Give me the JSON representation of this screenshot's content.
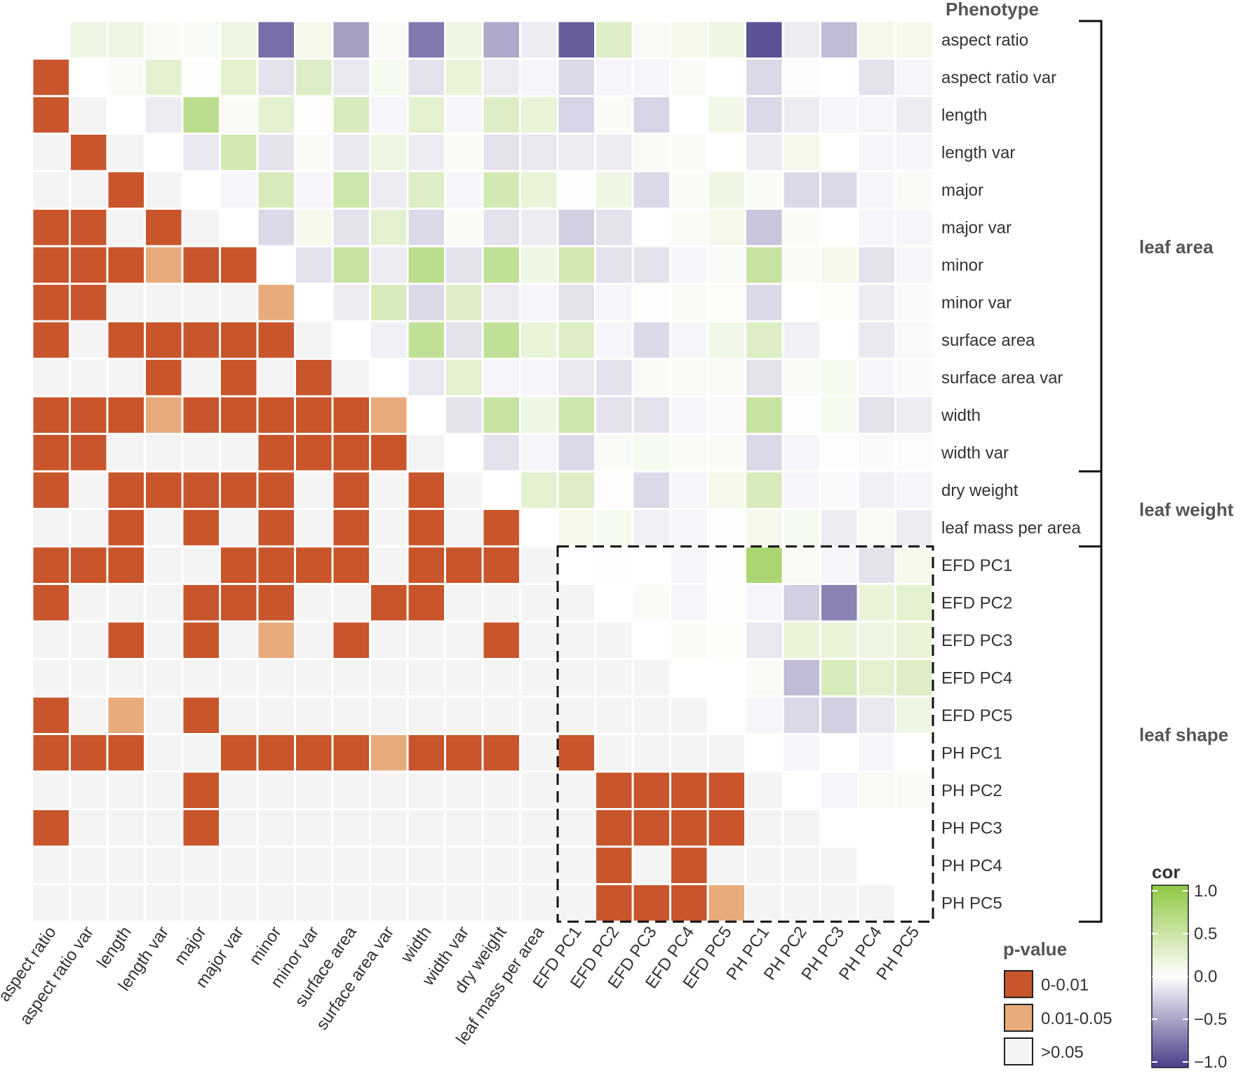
{
  "chart_data": {
    "type": "heatmap",
    "title": "",
    "row_header": "Phenotype",
    "variables": [
      "aspect ratio",
      "aspect ratio var",
      "length",
      "length var",
      "major",
      "major var",
      "minor",
      "minor var",
      "surface area",
      "surface area var",
      "width",
      "width var",
      "dry weight",
      "leaf mass per area",
      "EFD PC1",
      "EFD PC2",
      "EFD PC3",
      "EFD PC4",
      "EFD PC5",
      "PH PC1",
      "PH PC2",
      "PH PC3",
      "PH PC4",
      "PH PC5"
    ],
    "upper_triangle": "correlation coefficient (cor), range -1 to 1",
    "lower_triangle": "p-value category",
    "cor_matrix": [
      [
        0,
        0.15,
        0.15,
        0.05,
        0.05,
        0.15,
        -0.75,
        0.1,
        -0.5,
        0.05,
        -0.7,
        0.15,
        -0.45,
        -0.1,
        -0.85,
        0.3,
        0.05,
        0.1,
        0.15,
        -0.9,
        -0.1,
        -0.35,
        0.1,
        0.1
      ],
      [
        0.15,
        0,
        0.05,
        0.25,
        0.02,
        0.25,
        -0.15,
        0.3,
        -0.12,
        0.08,
        -0.15,
        0.2,
        -0.1,
        -0.05,
        -0.2,
        -0.05,
        -0.05,
        0.05,
        0,
        -0.2,
        -0.02,
        0,
        -0.15,
        -0.05
      ],
      [
        0.15,
        0.05,
        0,
        -0.1,
        0.6,
        0.05,
        0.25,
        0.02,
        0.35,
        -0.05,
        0.25,
        -0.05,
        0.3,
        0.2,
        -0.22,
        0.05,
        -0.22,
        0,
        0.12,
        -0.2,
        -0.1,
        -0.05,
        -0.05,
        -0.1
      ],
      [
        0.05,
        0.25,
        -0.1,
        0,
        -0.12,
        0.4,
        -0.15,
        0.05,
        -0.12,
        0.15,
        -0.1,
        0.05,
        -0.15,
        -0.12,
        -0.1,
        -0.1,
        0.05,
        0.05,
        0,
        -0.1,
        0.1,
        0,
        -0.05,
        -0.05
      ],
      [
        0.05,
        0.02,
        0.6,
        -0.12,
        0,
        -0.05,
        0.35,
        -0.05,
        0.45,
        -0.1,
        0.3,
        -0.05,
        0.4,
        0.2,
        0.02,
        0.15,
        -0.2,
        0.05,
        0.15,
        0.05,
        -0.2,
        -0.2,
        -0.05,
        0.05
      ],
      [
        0.15,
        0.25,
        0.05,
        0.4,
        -0.05,
        0,
        -0.2,
        0.1,
        -0.15,
        0.25,
        -0.2,
        0.05,
        -0.15,
        -0.1,
        -0.25,
        -0.15,
        0,
        0.05,
        0.1,
        -0.3,
        0.05,
        0,
        -0.05,
        -0.05
      ],
      [
        -0.75,
        -0.15,
        0.25,
        -0.15,
        0.35,
        -0.2,
        0,
        -0.15,
        0.5,
        -0.1,
        0.6,
        -0.15,
        0.55,
        0.15,
        0.4,
        -0.15,
        -0.15,
        -0.05,
        0.05,
        0.5,
        0.05,
        0.1,
        -0.15,
        -0.05
      ],
      [
        0.1,
        0.3,
        0.02,
        0.05,
        -0.05,
        0.1,
        -0.15,
        0,
        -0.1,
        0.35,
        -0.2,
        0.3,
        -0.1,
        -0.05,
        -0.15,
        -0.05,
        0.02,
        0.05,
        0.03,
        -0.2,
        0,
        0.03,
        -0.1,
        -0.03
      ],
      [
        -0.5,
        -0.12,
        0.35,
        -0.12,
        0.45,
        -0.15,
        0.5,
        -0.1,
        0,
        -0.08,
        0.55,
        -0.15,
        0.55,
        0.2,
        0.3,
        -0.05,
        -0.2,
        -0.05,
        0.12,
        0.3,
        -0.08,
        0,
        -0.12,
        -0.03
      ],
      [
        0.05,
        0.08,
        -0.05,
        0.15,
        -0.1,
        0.25,
        -0.1,
        0.35,
        -0.08,
        0,
        -0.12,
        0.25,
        -0.05,
        -0.05,
        -0.12,
        -0.15,
        0.05,
        0.05,
        0.05,
        -0.15,
        0.05,
        0.08,
        -0.05,
        -0.03
      ],
      [
        -0.7,
        -0.15,
        0.25,
        -0.1,
        0.3,
        -0.2,
        0.6,
        -0.2,
        0.55,
        -0.12,
        0,
        -0.15,
        0.5,
        0.15,
        0.45,
        -0.15,
        -0.15,
        -0.05,
        -0.03,
        0.5,
        0.02,
        0.08,
        -0.15,
        -0.1
      ],
      [
        0.15,
        0.2,
        -0.05,
        0.05,
        -0.05,
        0.05,
        -0.15,
        0.3,
        -0.15,
        0.25,
        -0.15,
        0,
        -0.15,
        -0.05,
        -0.2,
        0.05,
        0.08,
        0.05,
        0.05,
        -0.2,
        -0.05,
        0.02,
        -0.03,
        -0.02
      ],
      [
        -0.45,
        -0.1,
        0.3,
        -0.15,
        0.4,
        -0.15,
        0.55,
        -0.1,
        0.55,
        -0.05,
        0.5,
        -0.15,
        0,
        0.25,
        0.3,
        0.02,
        -0.2,
        -0.05,
        0.1,
        0.35,
        -0.05,
        -0.03,
        -0.08,
        -0.05
      ],
      [
        -0.1,
        -0.05,
        0.2,
        -0.12,
        0.2,
        -0.1,
        0.15,
        -0.05,
        0.2,
        -0.05,
        0.15,
        -0.05,
        0.25,
        0,
        0.1,
        0.08,
        -0.08,
        -0.05,
        0.02,
        0.1,
        0.08,
        -0.1,
        0.05,
        -0.1
      ],
      [
        -0.85,
        -0.2,
        -0.22,
        -0.1,
        0.02,
        -0.25,
        0.4,
        -0.15,
        0.3,
        -0.12,
        0.45,
        -0.2,
        0.3,
        0.1,
        0,
        0.02,
        0,
        -0.05,
        0.02,
        0.75,
        0.05,
        -0.05,
        -0.15,
        0.1
      ],
      [
        0.3,
        -0.05,
        0.05,
        -0.1,
        0.15,
        -0.15,
        -0.15,
        -0.05,
        -0.05,
        -0.15,
        -0.15,
        0.05,
        0.02,
        0.08,
        0.02,
        0,
        0.05,
        -0.05,
        0.02,
        -0.05,
        -0.25,
        -0.65,
        0.2,
        0.25
      ],
      [
        0.05,
        -0.05,
        -0.22,
        0.05,
        -0.2,
        0,
        -0.15,
        0.02,
        -0.2,
        0.05,
        -0.15,
        0.08,
        -0.2,
        -0.08,
        0,
        0.05,
        0,
        0.05,
        0.03,
        -0.12,
        0.2,
        0.2,
        0.15,
        0.2
      ],
      [
        0.1,
        0.05,
        0,
        0.05,
        0.05,
        0.05,
        -0.05,
        0.05,
        -0.05,
        0.05,
        -0.05,
        0.05,
        -0.05,
        -0.05,
        -0.05,
        -0.05,
        0.05,
        0,
        0,
        0.05,
        -0.35,
        0.35,
        0.25,
        0.3
      ],
      [
        0.15,
        0,
        0.12,
        0,
        0.15,
        0.1,
        0.05,
        0.03,
        0.12,
        0.05,
        -0.03,
        0.05,
        0.1,
        0.02,
        0.02,
        0.02,
        0.03,
        0,
        0,
        -0.05,
        -0.2,
        -0.25,
        -0.12,
        0.15
      ],
      [
        -0.9,
        -0.2,
        -0.2,
        -0.1,
        0.05,
        -0.3,
        0.5,
        -0.2,
        0.3,
        -0.15,
        0.5,
        -0.2,
        0.35,
        0.1,
        0.75,
        -0.05,
        -0.12,
        0.05,
        -0.05,
        0,
        -0.05,
        0,
        -0.05,
        0
      ],
      [
        -0.1,
        -0.02,
        -0.1,
        0.1,
        -0.2,
        0.05,
        0.05,
        0,
        -0.08,
        0.05,
        0.02,
        -0.05,
        -0.05,
        0.08,
        0.05,
        -0.25,
        0.2,
        -0.35,
        -0.2,
        -0.05,
        0,
        -0.05,
        0.05,
        0.05
      ],
      [
        -0.35,
        0,
        -0.05,
        0,
        -0.2,
        0,
        0.1,
        0.03,
        0,
        0.08,
        0.08,
        0.02,
        -0.03,
        -0.1,
        -0.05,
        -0.65,
        0.2,
        0.35,
        -0.25,
        0,
        -0.05,
        0,
        0,
        0
      ],
      [
        0.1,
        -0.15,
        -0.05,
        -0.05,
        -0.05,
        -0.05,
        -0.15,
        -0.1,
        -0.12,
        -0.05,
        -0.15,
        -0.03,
        -0.08,
        0.05,
        -0.15,
        0.2,
        0.15,
        0.25,
        -0.12,
        -0.05,
        0.05,
        0,
        0,
        0
      ],
      [
        0.1,
        -0.05,
        -0.1,
        -0.05,
        0.05,
        -0.05,
        -0.05,
        -0.03,
        -0.03,
        -0.03,
        -0.1,
        -0.02,
        -0.05,
        -0.1,
        0.1,
        0.25,
        0.2,
        0.3,
        0.15,
        0,
        0.05,
        0,
        0,
        0
      ]
    ],
    "pvalue_matrix": [
      [
        0,
        0,
        0,
        0,
        0,
        0,
        0,
        0,
        0,
        0,
        0,
        0,
        0,
        0,
        0,
        0,
        0,
        0,
        0,
        0,
        0,
        0,
        0,
        0
      ],
      [
        1,
        0,
        0,
        0,
        0,
        0,
        0,
        0,
        0,
        0,
        0,
        0,
        0,
        0,
        0,
        0,
        0,
        0,
        0,
        0,
        0,
        0,
        0,
        0
      ],
      [
        1,
        0,
        0,
        0,
        0,
        0,
        0,
        0,
        0,
        0,
        0,
        0,
        0,
        0,
        0,
        0,
        0,
        0,
        0,
        0,
        0,
        0,
        0,
        0
      ],
      [
        0,
        1,
        0,
        0,
        0,
        0,
        0,
        0,
        0,
        0,
        0,
        0,
        0,
        0,
        0,
        0,
        0,
        0,
        0,
        0,
        0,
        0,
        0,
        0
      ],
      [
        0,
        0,
        1,
        0,
        0,
        0,
        0,
        0,
        0,
        0,
        0,
        0,
        0,
        0,
        0,
        0,
        0,
        0,
        0,
        0,
        0,
        0,
        0,
        0
      ],
      [
        1,
        1,
        0,
        1,
        0,
        0,
        0,
        0,
        0,
        0,
        0,
        0,
        0,
        0,
        0,
        0,
        0,
        0,
        0,
        0,
        0,
        0,
        0,
        0
      ],
      [
        1,
        1,
        1,
        2,
        1,
        1,
        0,
        0,
        0,
        0,
        0,
        0,
        0,
        0,
        0,
        0,
        0,
        0,
        0,
        0,
        0,
        0,
        0,
        0
      ],
      [
        1,
        1,
        0,
        0,
        0,
        0,
        2,
        0,
        0,
        0,
        0,
        0,
        0,
        0,
        0,
        0,
        0,
        0,
        0,
        0,
        0,
        0,
        0,
        0
      ],
      [
        1,
        0,
        1,
        1,
        1,
        1,
        1,
        0,
        0,
        0,
        0,
        0,
        0,
        0,
        0,
        0,
        0,
        0,
        0,
        0,
        0,
        0,
        0,
        0
      ],
      [
        0,
        0,
        0,
        1,
        0,
        1,
        0,
        1,
        0,
        0,
        0,
        0,
        0,
        0,
        0,
        0,
        0,
        0,
        0,
        0,
        0,
        0,
        0,
        0
      ],
      [
        1,
        1,
        1,
        2,
        1,
        1,
        1,
        1,
        1,
        2,
        0,
        0,
        0,
        0,
        0,
        0,
        0,
        0,
        0,
        0,
        0,
        0,
        0,
        0
      ],
      [
        1,
        1,
        0,
        0,
        0,
        0,
        1,
        1,
        1,
        1,
        0,
        0,
        0,
        0,
        0,
        0,
        0,
        0,
        0,
        0,
        0,
        0,
        0,
        0
      ],
      [
        1,
        0,
        1,
        1,
        1,
        1,
        1,
        0,
        1,
        0,
        1,
        0,
        0,
        0,
        0,
        0,
        0,
        0,
        0,
        0,
        0,
        0,
        0,
        0
      ],
      [
        0,
        0,
        1,
        0,
        1,
        0,
        1,
        0,
        1,
        0,
        1,
        0,
        1,
        0,
        0,
        0,
        0,
        0,
        0,
        0,
        0,
        0,
        0,
        0
      ],
      [
        1,
        1,
        1,
        0,
        0,
        1,
        1,
        1,
        1,
        0,
        1,
        1,
        1,
        0,
        0,
        0,
        0,
        0,
        0,
        0,
        0,
        0,
        0,
        0
      ],
      [
        1,
        0,
        0,
        0,
        1,
        1,
        1,
        0,
        0,
        1,
        1,
        0,
        0,
        0,
        0,
        0,
        0,
        0,
        0,
        0,
        0,
        0,
        0,
        0
      ],
      [
        0,
        0,
        1,
        0,
        1,
        0,
        2,
        0,
        1,
        0,
        0,
        0,
        1,
        0,
        0,
        0,
        0,
        0,
        0,
        0,
        0,
        0,
        0,
        0
      ],
      [
        0,
        0,
        0,
        0,
        0,
        0,
        0,
        0,
        0,
        0,
        0,
        0,
        0,
        0,
        0,
        0,
        0,
        0,
        0,
        0,
        0,
        0,
        0,
        0
      ],
      [
        1,
        0,
        2,
        0,
        1,
        0,
        0,
        0,
        0,
        0,
        0,
        0,
        0,
        0,
        0,
        0,
        0,
        0,
        0,
        0,
        0,
        0,
        0,
        0
      ],
      [
        1,
        1,
        1,
        0,
        0,
        1,
        1,
        1,
        1,
        2,
        1,
        1,
        1,
        0,
        1,
        0,
        0,
        0,
        0,
        0,
        0,
        0,
        0,
        0
      ],
      [
        0,
        0,
        0,
        0,
        1,
        0,
        0,
        0,
        0,
        0,
        0,
        0,
        0,
        0,
        0,
        1,
        1,
        1,
        1,
        0,
        0,
        0,
        0,
        0
      ],
      [
        1,
        0,
        0,
        0,
        1,
        0,
        0,
        0,
        0,
        0,
        0,
        0,
        0,
        0,
        0,
        1,
        1,
        1,
        1,
        0,
        0,
        0,
        0,
        0
      ],
      [
        0,
        0,
        0,
        0,
        0,
        0,
        0,
        0,
        0,
        0,
        0,
        0,
        0,
        0,
        0,
        1,
        0,
        1,
        0,
        0,
        0,
        0,
        0,
        0
      ],
      [
        0,
        0,
        0,
        0,
        0,
        0,
        0,
        0,
        0,
        0,
        0,
        0,
        0,
        0,
        0,
        1,
        1,
        1,
        2,
        0,
        0,
        0,
        0,
        0
      ]
    ],
    "pvalue_codes": {
      "0": ">0.05",
      "1": "0-0.01",
      "2": "0.01-0.05"
    },
    "groups": [
      {
        "label": "leaf area",
        "from": "aspect ratio",
        "to": "width var"
      },
      {
        "label": "leaf weight",
        "from": "dry weight",
        "to": "leaf mass per area"
      },
      {
        "label": "leaf shape",
        "from": "EFD PC1",
        "to": "PH PC5"
      }
    ],
    "highlight_box": {
      "rows_from": "EFD PC1",
      "rows_to": "PH PC5",
      "cols_from": "EFD PC1",
      "cols_to": "PH PC5",
      "style": "dashed"
    },
    "pvalue_legend": {
      "title": "p-value",
      "entries": [
        {
          "label": "0-0.01",
          "color": "#c8552b"
        },
        {
          "label": "0.01-0.05",
          "color": "#e8ab7c"
        },
        {
          "label": ">0.05",
          "color": "#f4f4f4"
        }
      ]
    },
    "cor_legend": {
      "title": "cor",
      "range": [
        -1,
        1
      ],
      "ticks": [
        1.0,
        0.5,
        0.0,
        -0.5,
        -1.0
      ],
      "tick_labels": [
        "1.0",
        "0.5",
        "0.0",
        "−0.5",
        "−1.0"
      ]
    },
    "colors": {
      "positive": "#8fc742",
      "negative": "#4a3f8a",
      "neutral": "#ffffff",
      "p_high": "#c8552b",
      "p_mid": "#e8ab7c",
      "p_none": "#f4f4f4"
    }
  }
}
